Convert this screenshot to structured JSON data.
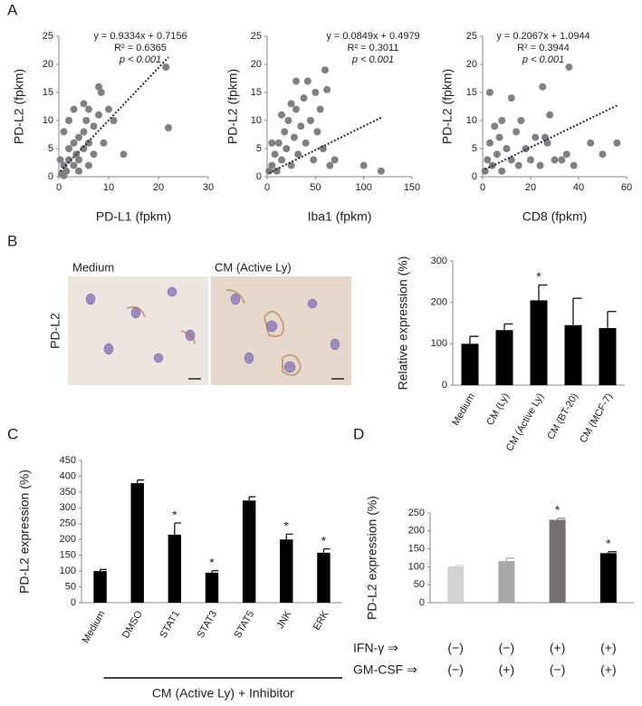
{
  "panel_labels": [
    "A",
    "B",
    "C",
    "D"
  ],
  "micrographs": {
    "row_label": "PD-L2",
    "panels": [
      "Medium",
      "CM (Active Ly)"
    ]
  },
  "chart_data": [
    {
      "type": "scatter",
      "x_label": "PD-L1 (fpkm)",
      "y_label": "PD-L2 (fpkm)",
      "color": "#808080",
      "annotations": [
        "y = 0.9334x + 0.7156",
        "R² = 0.6365",
        "p < 0.001"
      ],
      "trendline": {
        "slope": 0.9334,
        "intercept": 0.7156
      },
      "x": [
        0.5,
        1,
        1.5,
        2,
        2,
        3,
        3,
        3.5,
        4,
        4,
        5,
        5,
        5.5,
        6,
        6,
        7,
        7,
        8,
        8,
        8.5,
        9,
        10,
        11,
        13,
        1,
        2,
        3,
        5,
        21.5,
        22,
        0.3,
        1,
        4,
        6
      ],
      "values": [
        0.5,
        2,
        1,
        3,
        5,
        2,
        6,
        4,
        7,
        3,
        8,
        5,
        10,
        6,
        12,
        9,
        4,
        11,
        16,
        15,
        6,
        12,
        10,
        4,
        8,
        10,
        12,
        13,
        19.5,
        8.7,
        3,
        0.2,
        1,
        2
      ],
      "xlim": [
        0,
        30
      ],
      "xticks": [
        0,
        10,
        20,
        30
      ],
      "ylim": [
        0,
        25
      ],
      "yticks": [
        0,
        5,
        10,
        15,
        20,
        25
      ]
    },
    {
      "type": "scatter",
      "x_label": "Iba1 (fpkm)",
      "y_label": "PD-L2 (fpkm)",
      "color": "#808080",
      "annotations": [
        "y = 0.0849x + 0.4979",
        "R² = 0.3011",
        "p < 0.001"
      ],
      "trendline": {
        "slope": 0.0849,
        "intercept": 0.4979
      },
      "x": [
        2,
        5,
        8,
        10,
        12,
        15,
        18,
        20,
        22,
        25,
        25,
        28,
        30,
        32,
        35,
        38,
        40,
        42,
        45,
        48,
        50,
        52,
        55,
        58,
        60,
        62,
        65,
        70,
        100,
        118,
        5,
        15,
        30
      ],
      "values": [
        1,
        2,
        4,
        1,
        6,
        3,
        8,
        5,
        10,
        2,
        13,
        7,
        12,
        4,
        9,
        14,
        6,
        17,
        10,
        3,
        15,
        8,
        12,
        5,
        19,
        15.5,
        2,
        3,
        2,
        1,
        6,
        11,
        17
      ],
      "xlim": [
        0,
        150
      ],
      "xticks": [
        0,
        50,
        100,
        150
      ],
      "ylim": [
        0,
        25
      ],
      "yticks": [
        0,
        5,
        10,
        15,
        20,
        25
      ]
    },
    {
      "type": "scatter",
      "x_label": "CD8 (fpkm)",
      "y_label": "PD-L2 (fpkm)",
      "color": "#808080",
      "annotations": [
        "y = 0.2067x + 1.0944",
        "R² = 0.3944",
        "p < 0.001"
      ],
      "trendline": {
        "slope": 0.2067,
        "intercept": 1.0944
      },
      "x": [
        1,
        2,
        3,
        4,
        5,
        6,
        7,
        8,
        10,
        12,
        14,
        15,
        16,
        18,
        20,
        22,
        24,
        25,
        26,
        27,
        28,
        30,
        33,
        35,
        36,
        38,
        45,
        50,
        56,
        3,
        8,
        12
      ],
      "values": [
        1,
        3,
        6,
        2,
        9,
        4,
        7,
        1,
        5,
        3,
        8,
        2,
        10,
        5,
        3,
        7,
        2,
        16,
        7,
        6,
        11,
        3,
        3,
        4,
        19.5,
        2,
        6,
        4,
        6,
        15,
        10,
        14
      ],
      "xlim": [
        0,
        60
      ],
      "xticks": [
        0,
        20,
        40,
        60
      ],
      "ylim": [
        0,
        25
      ],
      "yticks": [
        0,
        5,
        10,
        15,
        20,
        25
      ]
    },
    {
      "type": "bar",
      "y_label": "Relative expression (%)",
      "color": "#000000",
      "categories": [
        "Medium",
        "CM (Ly)",
        "CM (Active Ly)",
        "CM (BT-20)",
        "CM (MCF-7)"
      ],
      "values": [
        100,
        133,
        205,
        145,
        138
      ],
      "errors": [
        18,
        15,
        37,
        65,
        40
      ],
      "markers": [
        null,
        null,
        "*",
        null,
        null
      ],
      "ylim": [
        0,
        300
      ],
      "yticks": [
        0,
        100,
        200,
        300
      ]
    },
    {
      "type": "bar",
      "y_label": "PD-L2 expression (%)",
      "color": "#000000",
      "categories": [
        "Medium",
        "DMSO",
        "STAT1",
        "STAT3",
        "STAT5",
        "JNK",
        "ERK"
      ],
      "values": [
        100,
        378,
        215,
        95,
        323,
        200,
        158
      ],
      "errors": [
        5,
        10,
        37,
        6,
        12,
        17,
        12
      ],
      "markers": [
        null,
        null,
        "*",
        "*",
        null,
        "*",
        "*"
      ],
      "group_label": "CM (Active Ly) + Inhibitor",
      "ylim": [
        0,
        450
      ],
      "yticks": [
        0,
        50,
        100,
        150,
        200,
        250,
        300,
        350,
        400,
        450
      ]
    },
    {
      "type": "bar",
      "y_label": "PD-L2 expression (%)",
      "colors": [
        "#d3d3d3",
        "#a8a8a8",
        "#767171",
        "#000000"
      ],
      "values": [
        101,
        116,
        231,
        138
      ],
      "errors": [
        3,
        8,
        4,
        4
      ],
      "markers": [
        null,
        null,
        "*",
        "*"
      ],
      "rows": [
        {
          "name": "IFN-γ ⇒",
          "values": [
            "(−)",
            "(−)",
            "(+)",
            "(+)"
          ]
        },
        {
          "name": "GM-CSF ⇒",
          "values": [
            "(−)",
            "(+)",
            "(−)",
            "(+)"
          ]
        }
      ],
      "ylim": [
        0,
        250
      ],
      "yticks": [
        0,
        50,
        100,
        150,
        200,
        250
      ]
    }
  ]
}
